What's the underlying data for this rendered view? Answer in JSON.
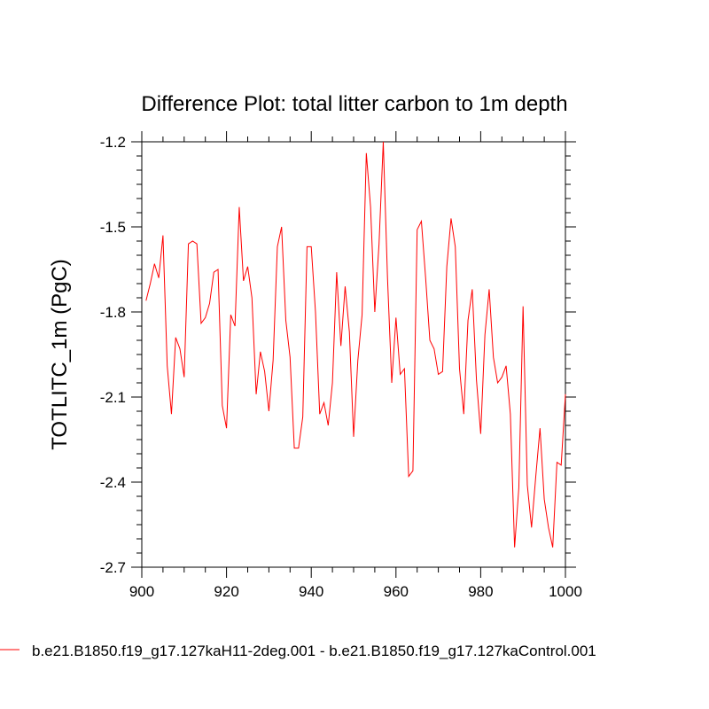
{
  "chart_data": {
    "type": "line",
    "title": "Difference Plot: total litter carbon to 1m depth",
    "xlabel": "",
    "ylabel": "TOTLITC_1m  (PgC)",
    "xlim": [
      900,
      1000
    ],
    "ylim": [
      -2.7,
      -1.2
    ],
    "x_ticks": [
      900,
      920,
      940,
      960,
      980,
      1000
    ],
    "x_tick_labels": [
      "900",
      "920",
      "940",
      "960",
      "980",
      "1000"
    ],
    "y_ticks": [
      -1.2,
      -1.5,
      -1.8,
      -2.1,
      -2.4,
      -2.7
    ],
    "y_tick_labels": [
      "-1.2",
      "-1.5",
      "-1.8",
      "-2.1",
      "-2.4",
      "-2.7"
    ],
    "x_minor_step": 5,
    "y_minor_step": 0.05,
    "grid": false,
    "legend_position": "bottom-left",
    "series": [
      {
        "name": "b.e21.B1850.f19_g17.127kaH11-2deg.001 - b.e21.B1850.f19_g17.127kaControl.001",
        "color": "#ff0000",
        "x": [
          901,
          902,
          903,
          904,
          905,
          906,
          907,
          908,
          909,
          910,
          911,
          912,
          913,
          914,
          915,
          916,
          917,
          918,
          919,
          920,
          921,
          922,
          923,
          924,
          925,
          926,
          927,
          928,
          929,
          930,
          931,
          932,
          933,
          934,
          935,
          936,
          937,
          938,
          939,
          940,
          941,
          942,
          943,
          944,
          945,
          946,
          947,
          948,
          949,
          950,
          951,
          952,
          953,
          954,
          955,
          956,
          957,
          958,
          959,
          960,
          961,
          962,
          963,
          964,
          965,
          966,
          967,
          968,
          969,
          970,
          971,
          972,
          973,
          974,
          975,
          976,
          977,
          978,
          979,
          980,
          981,
          982,
          983,
          984,
          985,
          986,
          987,
          988,
          989,
          990,
          991,
          992,
          993,
          994,
          995,
          996,
          997,
          998,
          999,
          1000
        ],
        "values": [
          -1.76,
          -1.7,
          -1.63,
          -1.68,
          -1.53,
          -1.99,
          -2.16,
          -1.89,
          -1.93,
          -2.03,
          -1.56,
          -1.55,
          -1.56,
          -1.84,
          -1.82,
          -1.77,
          -1.66,
          -1.65,
          -2.13,
          -2.21,
          -1.81,
          -1.85,
          -1.43,
          -1.69,
          -1.64,
          -1.75,
          -2.09,
          -1.94,
          -2.01,
          -2.15,
          -1.97,
          -1.57,
          -1.5,
          -1.83,
          -1.96,
          -2.28,
          -2.28,
          -2.17,
          -1.57,
          -1.57,
          -1.8,
          -2.16,
          -2.12,
          -2.2,
          -2.05,
          -1.66,
          -1.92,
          -1.71,
          -1.87,
          -2.24,
          -1.97,
          -1.81,
          -1.24,
          -1.43,
          -1.8,
          -1.56,
          -1.2,
          -1.68,
          -2.05,
          -1.82,
          -2.02,
          -2.0,
          -2.38,
          -2.36,
          -1.51,
          -1.48,
          -1.68,
          -1.9,
          -1.93,
          -2.02,
          -2.01,
          -1.64,
          -1.47,
          -1.57,
          -2.0,
          -2.16,
          -1.83,
          -1.72,
          -2.04,
          -2.23,
          -1.88,
          -1.72,
          -1.96,
          -2.05,
          -2.03,
          -1.99,
          -2.16,
          -2.63,
          -2.42,
          -1.78,
          -2.41,
          -2.56,
          -2.38,
          -2.21,
          -2.46,
          -2.56,
          -2.63,
          -2.33,
          -2.34,
          -2.09
        ]
      }
    ]
  }
}
